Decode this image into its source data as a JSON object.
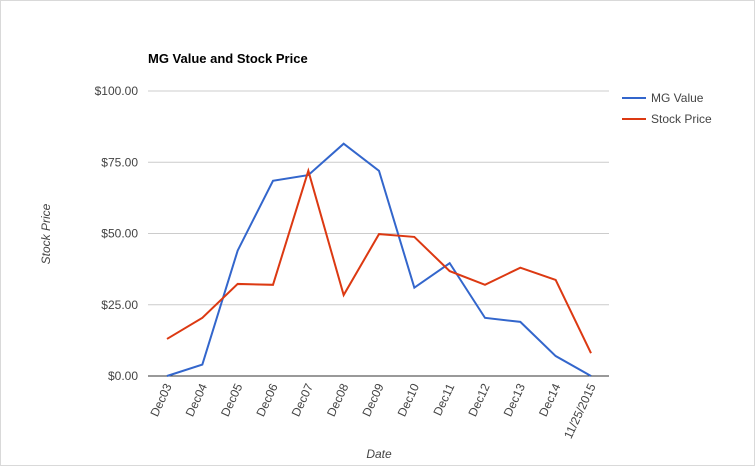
{
  "chart_data": {
    "type": "line",
    "title": "MG Value and Stock Price",
    "x_label": "Date",
    "y_label": "Stock Price",
    "categories": [
      "Dec03",
      "Dec04",
      "Dec05",
      "Dec06",
      "Dec07",
      "Dec08",
      "Dec09",
      "Dec10",
      "Dec11",
      "Dec12",
      "Dec13",
      "Dec14",
      "11/25/2015"
    ],
    "series": [
      {
        "name": "MG Value",
        "color": "#3366cc",
        "values": [
          0,
          4,
          44,
          68.5,
          70.5,
          81.5,
          72,
          31,
          39.6,
          20.4,
          19,
          7,
          0
        ]
      },
      {
        "name": "Stock Price",
        "color": "#dc3912",
        "values": [
          13,
          20.4,
          32.3,
          32,
          72,
          28.4,
          49.8,
          48.8,
          36.8,
          32,
          38,
          33.7,
          8
        ]
      }
    ],
    "ylim": [
      0,
      100
    ],
    "yticks": [
      {
        "value": 0,
        "label": "$0.00"
      },
      {
        "value": 25,
        "label": "$25.00"
      },
      {
        "value": 50,
        "label": "$50.00"
      },
      {
        "value": 75,
        "label": "$75.00"
      },
      {
        "value": 100,
        "label": "$100.00"
      }
    ],
    "grid": true,
    "legend": "right"
  }
}
